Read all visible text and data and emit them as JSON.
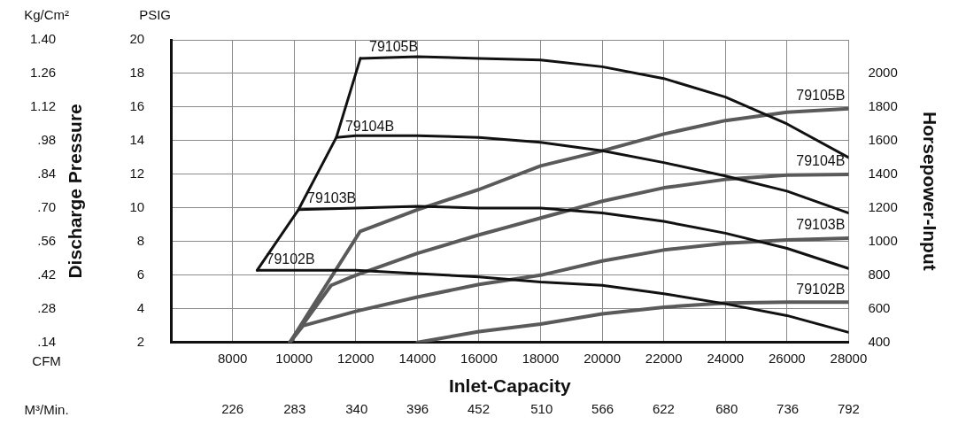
{
  "chart_data": {
    "type": "line",
    "xlabel": "Inlet-Capacity",
    "ylabel": "Discharge Pressure",
    "y2label": "Horsepower-Input",
    "y3label": "Kg/Cm²",
    "x2label": "M³/Min.",
    "annotations": [
      "PSIG",
      "CFM"
    ],
    "xlim": [
      6000,
      28000
    ],
    "xticks": [
      8000,
      10000,
      12000,
      14000,
      16000,
      18000,
      20000,
      22000,
      24000,
      26000,
      28000
    ],
    "x2lim": [
      169.4,
      792
    ],
    "x2ticks": [
      226,
      283,
      340,
      396,
      452,
      510,
      566,
      622,
      680,
      736,
      792
    ],
    "ylim": [
      2,
      20
    ],
    "yticks": [
      2,
      4,
      6,
      8,
      10,
      12,
      14,
      16,
      18,
      20
    ],
    "y2lim": [
      400,
      2200
    ],
    "y2ticks": [
      400,
      600,
      800,
      1000,
      1200,
      1400,
      1600,
      1800,
      2000
    ],
    "y3lim": [
      0.14,
      1.4
    ],
    "y3ticks": [
      {
        "value": 1.4,
        "label": "1.40"
      },
      1.26,
      1.12,
      {
        "value": 0.98,
        "label": ".98"
      },
      {
        "value": 0.84,
        "label": ".84"
      },
      {
        "value": 0.7,
        "label": ".70"
      },
      {
        "value": 0.56,
        "label": ".56"
      },
      {
        "value": 0.42,
        "label": ".42"
      },
      {
        "value": 0.28,
        "label": ".28"
      },
      {
        "value": 0.14,
        "label": ".14"
      }
    ],
    "grid": true,
    "legend": false,
    "marker": "none",
    "series": [
      {
        "color": "#111111",
        "x": [
          8800,
          10140,
          11370,
          12150
        ],
        "values": [
          6.3,
          9.9,
          14.2,
          18.9
        ]
      },
      {
        "name": "79105B",
        "color": "#111111",
        "x": [
          12150,
          14000,
          16000,
          18000,
          20000,
          22000,
          24000,
          26000,
          28000
        ],
        "values": [
          18.9,
          19.0,
          18.9,
          18.8,
          18.4,
          17.7,
          16.6,
          15.0,
          13.0
        ]
      },
      {
        "name": "79104B",
        "color": "#111111",
        "x": [
          11370,
          12000,
          14000,
          16000,
          18000,
          20000,
          22000,
          24000,
          26000,
          28000
        ],
        "values": [
          14.2,
          14.3,
          14.3,
          14.2,
          13.9,
          13.4,
          12.7,
          11.9,
          11.0,
          9.7
        ]
      },
      {
        "name": "79103B",
        "color": "#111111",
        "x": [
          10140,
          12000,
          14000,
          16000,
          18000,
          20000,
          22000,
          24000,
          26000,
          28000
        ],
        "values": [
          9.9,
          10.0,
          10.1,
          10.0,
          10.0,
          9.7,
          9.2,
          8.5,
          7.6,
          6.4
        ]
      },
      {
        "name": "79102B",
        "color": "#111111",
        "x": [
          8800,
          10000,
          12000,
          14000,
          16000,
          18000,
          20000,
          22000,
          24000,
          26000,
          28000
        ],
        "values": [
          6.3,
          6.3,
          6.3,
          6.1,
          5.9,
          5.6,
          5.4,
          4.9,
          4.3,
          3.6,
          2.6
        ]
      },
      {
        "name": "79105B",
        "color": "#5a5a5a",
        "axis": "y2",
        "x": [
          9860,
          12140,
          14000,
          16000,
          18000,
          20000,
          22000,
          24000,
          26000,
          28000
        ],
        "values": [
          400,
          1060,
          1190,
          1310,
          1450,
          1540,
          1640,
          1720,
          1770,
          1790
        ]
      },
      {
        "name": "79104B",
        "color": "#5a5a5a",
        "axis": "y2",
        "x": [
          9860,
          11200,
          12000,
          14000,
          16000,
          18000,
          20000,
          22000,
          24000,
          26000,
          28000
        ],
        "values": [
          400,
          740,
          800,
          930,
          1040,
          1140,
          1240,
          1320,
          1370,
          1395,
          1400
        ]
      },
      {
        "name": "79103B",
        "color": "#5a5a5a",
        "axis": "y2",
        "x": [
          9860,
          10290,
          12000,
          14000,
          16000,
          18000,
          20000,
          22000,
          24000,
          26000,
          28000
        ],
        "values": [
          400,
          500,
          585,
          670,
          745,
          800,
          885,
          950,
          990,
          1010,
          1020
        ]
      },
      {
        "name": "79102B",
        "color": "#5a5a5a",
        "axis": "y2",
        "x": [
          14000,
          16000,
          18000,
          20000,
          22000,
          24000,
          26000,
          28000
        ],
        "values": [
          400,
          465,
          510,
          570,
          610,
          635,
          640,
          640
        ]
      }
    ]
  }
}
